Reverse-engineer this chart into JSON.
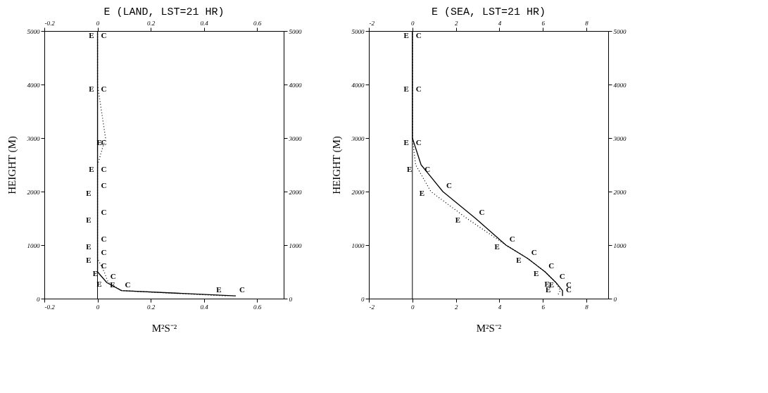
{
  "chart_data": [
    {
      "type": "line",
      "title": "E (LAND, LST=21 HR)",
      "xlabel": "M²S⁻²",
      "ylabel": "HEIGHT (M)",
      "xlim": [
        -0.2,
        0.7
      ],
      "xticks": [
        -0.2,
        0,
        0.2,
        0.4,
        0.6
      ],
      "x2lim": [
        -0.2,
        0.7
      ],
      "x2ticks": [
        -0.2,
        0,
        0.2,
        0.4,
        0.6
      ],
      "ylim": [
        0,
        5000
      ],
      "yticks": [
        0,
        1000,
        2000,
        3000,
        4000,
        5000
      ],
      "y2lim": [
        0,
        5000
      ],
      "y2ticks": [
        0,
        1000,
        2000,
        3000,
        4000,
        5000
      ],
      "ref_lines": [
        {
          "axis": "x",
          "value": 0,
          "color": "#000000",
          "line_style": "solid"
        }
      ],
      "series": [
        {
          "name": "C",
          "color": "#000000",
          "line_style": "solid",
          "x": [
            0,
            0,
            0,
            0,
            0,
            0,
            0,
            0,
            0.0,
            0.035,
            0.09,
            0.52
          ],
          "values": [
            5000,
            4000,
            3000,
            2500,
            2000,
            1500,
            1000,
            750,
            500,
            300,
            150,
            50
          ]
        },
        {
          "name": "E",
          "color": "#000000",
          "line_style": "dotted",
          "x": [
            0,
            0,
            0.03,
            0,
            0,
            0,
            0,
            0,
            0.025,
            0.04,
            0.09,
            0.49
          ],
          "values": [
            5000,
            4000,
            3000,
            2500,
            2000,
            1500,
            1000,
            750,
            500,
            300,
            150,
            50
          ]
        }
      ]
    },
    {
      "type": "line",
      "title": "E (SEA, LST=21 HR)",
      "xlabel": "M²S⁻²",
      "ylabel": "HEIGHT (M)",
      "xlim": [
        -2,
        9
      ],
      "xticks": [
        -2,
        0,
        2,
        4,
        6,
        8
      ],
      "x2lim": [
        -2,
        9
      ],
      "x2ticks": [
        -2,
        0,
        2,
        4,
        6,
        8
      ],
      "ylim": [
        0,
        5000
      ],
      "yticks": [
        0,
        1000,
        2000,
        3000,
        4000,
        5000
      ],
      "y2lim": [
        0,
        5000
      ],
      "y2ticks": [
        0,
        1000,
        2000,
        3000,
        4000,
        5000
      ],
      "ref_lines": [
        {
          "axis": "x",
          "value": 0,
          "color": "#000000",
          "line_style": "solid"
        }
      ],
      "series": [
        {
          "name": "C",
          "color": "#000000",
          "line_style": "solid",
          "x": [
            0,
            0,
            0,
            0.4,
            1.4,
            2.9,
            4.3,
            5.3,
            6.1,
            6.6,
            6.9,
            6.9
          ],
          "values": [
            5000,
            4000,
            3000,
            2500,
            2000,
            1500,
            1000,
            750,
            500,
            300,
            150,
            50
          ]
        },
        {
          "name": "E",
          "color": "#000000",
          "line_style": "dotted",
          "x": [
            0,
            0,
            0,
            0.15,
            0.85,
            2.5,
            4.3,
            5.3,
            6.1,
            6.6,
            6.8,
            6.65
          ],
          "values": [
            5000,
            4000,
            3000,
            2500,
            2000,
            1500,
            1000,
            750,
            500,
            300,
            150,
            50
          ]
        }
      ]
    }
  ]
}
